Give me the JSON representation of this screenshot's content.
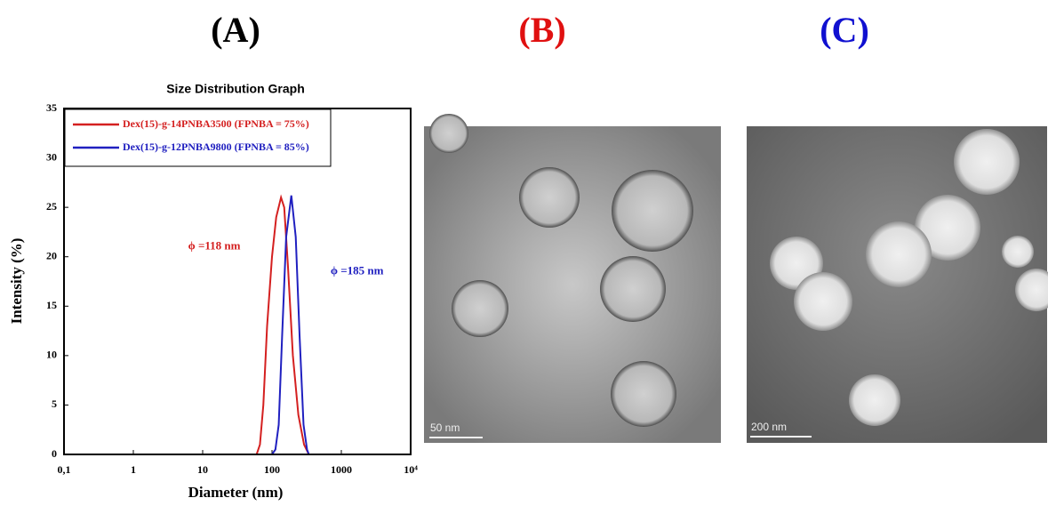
{
  "panels": {
    "a": "(A)",
    "b": "(B)",
    "c": "(C)"
  },
  "chart_data": {
    "type": "line",
    "title": "Size Distribution Graph",
    "x_label": "Diameter (nm)",
    "y_label": "Intensity (%)",
    "xscale": "log",
    "xlim": [
      0.1,
      10000
    ],
    "ylim": [
      0,
      35
    ],
    "xticks": [
      {
        "value": 0.1,
        "label": "0,1"
      },
      1,
      10,
      100,
      1000,
      {
        "value": 10000,
        "label": "10⁴"
      }
    ],
    "yticks": [
      0,
      5,
      10,
      15,
      20,
      25,
      30,
      35
    ],
    "legend": "upper left",
    "series": [
      {
        "name": "Dex(15)-g-14PNBA3500 (FPNBA = 75%)",
        "color": "#d42020",
        "x": [
          0.4,
          10,
          60,
          67,
          75,
          85,
          100,
          115,
          135,
          150,
          170,
          200,
          240,
          290,
          340,
          10000
        ],
        "values": [
          0,
          0,
          0,
          1,
          5,
          13,
          20,
          24,
          26,
          25,
          19,
          10,
          4,
          1,
          0,
          0
        ]
      },
      {
        "name": "Dex(15)-g-12PNBA9800 (FPNBA = 85%)",
        "color": "#2020c0",
        "x": [
          0.4,
          10,
          100,
          112,
          125,
          140,
          160,
          190,
          220,
          250,
          285,
          320,
          340,
          10000
        ],
        "values": [
          0,
          0,
          0,
          0.5,
          3,
          12,
          22,
          26.2,
          22,
          12,
          3,
          0.5,
          0,
          0
        ]
      }
    ],
    "annotations": [
      {
        "text": "ϕ =118 nm",
        "x": 118,
        "y": 21
      },
      {
        "text": "ϕ =185 nm",
        "x": 185,
        "y": 18.5
      }
    ]
  },
  "images": [
    {
      "scale_bar": "50 nm"
    },
    {
      "scale_bar": "200 nm"
    }
  ]
}
